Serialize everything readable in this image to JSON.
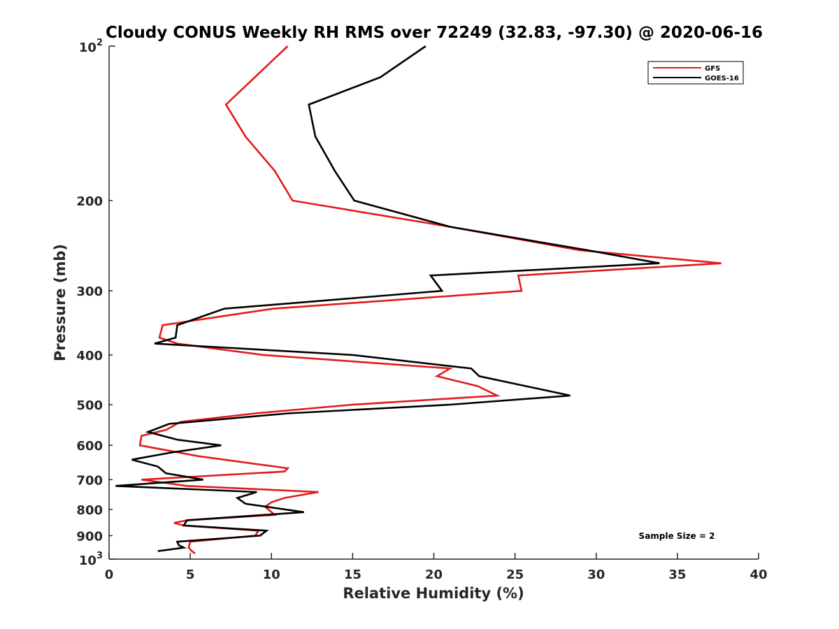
{
  "chart_data": {
    "type": "line",
    "title": "Cloudy CONUS Weekly RH RMS over 72249 (32.83, -97.30) @ 2020-06-16",
    "xlabel": "Relative Humidity (%)",
    "ylabel": "Pressure (mb)",
    "xlim": [
      0,
      40
    ],
    "ylim": [
      100,
      1000
    ],
    "y_scale": "log",
    "y_reversed": true,
    "grid": false,
    "legend_position": "top-right",
    "x_ticks": [
      0,
      5,
      10,
      15,
      20,
      25,
      30,
      35,
      40
    ],
    "x_tick_labels": [
      "0",
      "5",
      "10",
      "15",
      "20",
      "25",
      "30",
      "35",
      "40"
    ],
    "y_ticks": [
      200,
      300,
      400,
      500,
      600,
      700,
      800,
      900
    ],
    "y_tick_labels": [
      "200",
      "300",
      "400",
      "500",
      "600",
      "700",
      "800",
      "900"
    ],
    "y_top_label": {
      "base": "10",
      "exp": "2"
    },
    "y_bottom_label": {
      "base": "10",
      "exp": "3"
    },
    "annotation": "Sample Size = 2",
    "series": [
      {
        "name": "GFS",
        "color": "#e41a1c",
        "points": [
          [
            11.0,
            100
          ],
          [
            7.2,
            130
          ],
          [
            8.4,
            150
          ],
          [
            10.2,
            175
          ],
          [
            11.3,
            200
          ],
          [
            21.0,
            225
          ],
          [
            29.0,
            250
          ],
          [
            37.7,
            265
          ],
          [
            25.2,
            280
          ],
          [
            25.4,
            300
          ],
          [
            10.1,
            325
          ],
          [
            3.3,
            350
          ],
          [
            3.1,
            370
          ],
          [
            4.2,
            380
          ],
          [
            9.5,
            400
          ],
          [
            21.0,
            425
          ],
          [
            20.2,
            440
          ],
          [
            22.7,
            460
          ],
          [
            23.9,
            480
          ],
          [
            15.0,
            500
          ],
          [
            9.0,
            520
          ],
          [
            4.4,
            540
          ],
          [
            3.5,
            560
          ],
          [
            2.0,
            575
          ],
          [
            1.9,
            600
          ],
          [
            5.5,
            630
          ],
          [
            11.0,
            665
          ],
          [
            10.8,
            675
          ],
          [
            2.0,
            700
          ],
          [
            4.8,
            720
          ],
          [
            12.9,
            740
          ],
          [
            10.8,
            760
          ],
          [
            10.0,
            775
          ],
          [
            9.6,
            790
          ],
          [
            10.2,
            820
          ],
          [
            4.8,
            840
          ],
          [
            4.0,
            850
          ],
          [
            4.6,
            860
          ],
          [
            9.2,
            880
          ],
          [
            9.0,
            900
          ],
          [
            5.0,
            925
          ],
          [
            4.9,
            950
          ],
          [
            5.1,
            965
          ],
          [
            5.3,
            975
          ]
        ]
      },
      {
        "name": "GOES-16",
        "color": "#000000",
        "points": [
          [
            19.5,
            100
          ],
          [
            16.7,
            115
          ],
          [
            12.3,
            130
          ],
          [
            12.7,
            150
          ],
          [
            13.9,
            175
          ],
          [
            15.1,
            200
          ],
          [
            21.0,
            225
          ],
          [
            29.5,
            250
          ],
          [
            33.9,
            265
          ],
          [
            19.8,
            280
          ],
          [
            20.5,
            300
          ],
          [
            7.1,
            325
          ],
          [
            4.2,
            350
          ],
          [
            4.1,
            370
          ],
          [
            2.8,
            380
          ],
          [
            15.0,
            400
          ],
          [
            22.3,
            425
          ],
          [
            22.8,
            440
          ],
          [
            28.4,
            480
          ],
          [
            21.0,
            500
          ],
          [
            11.0,
            520
          ],
          [
            3.7,
            545
          ],
          [
            2.4,
            565
          ],
          [
            4.2,
            585
          ],
          [
            6.9,
            600
          ],
          [
            3.8,
            620
          ],
          [
            1.4,
            640
          ],
          [
            3.0,
            660
          ],
          [
            3.5,
            680
          ],
          [
            5.8,
            700
          ],
          [
            0.4,
            720
          ],
          [
            9.1,
            740
          ],
          [
            7.9,
            760
          ],
          [
            8.4,
            780
          ],
          [
            12.0,
            810
          ],
          [
            4.8,
            840
          ],
          [
            4.6,
            860
          ],
          [
            9.7,
            880
          ],
          [
            9.3,
            900
          ],
          [
            4.2,
            925
          ],
          [
            4.3,
            940
          ],
          [
            4.6,
            950
          ],
          [
            3.0,
            965
          ]
        ]
      }
    ]
  }
}
